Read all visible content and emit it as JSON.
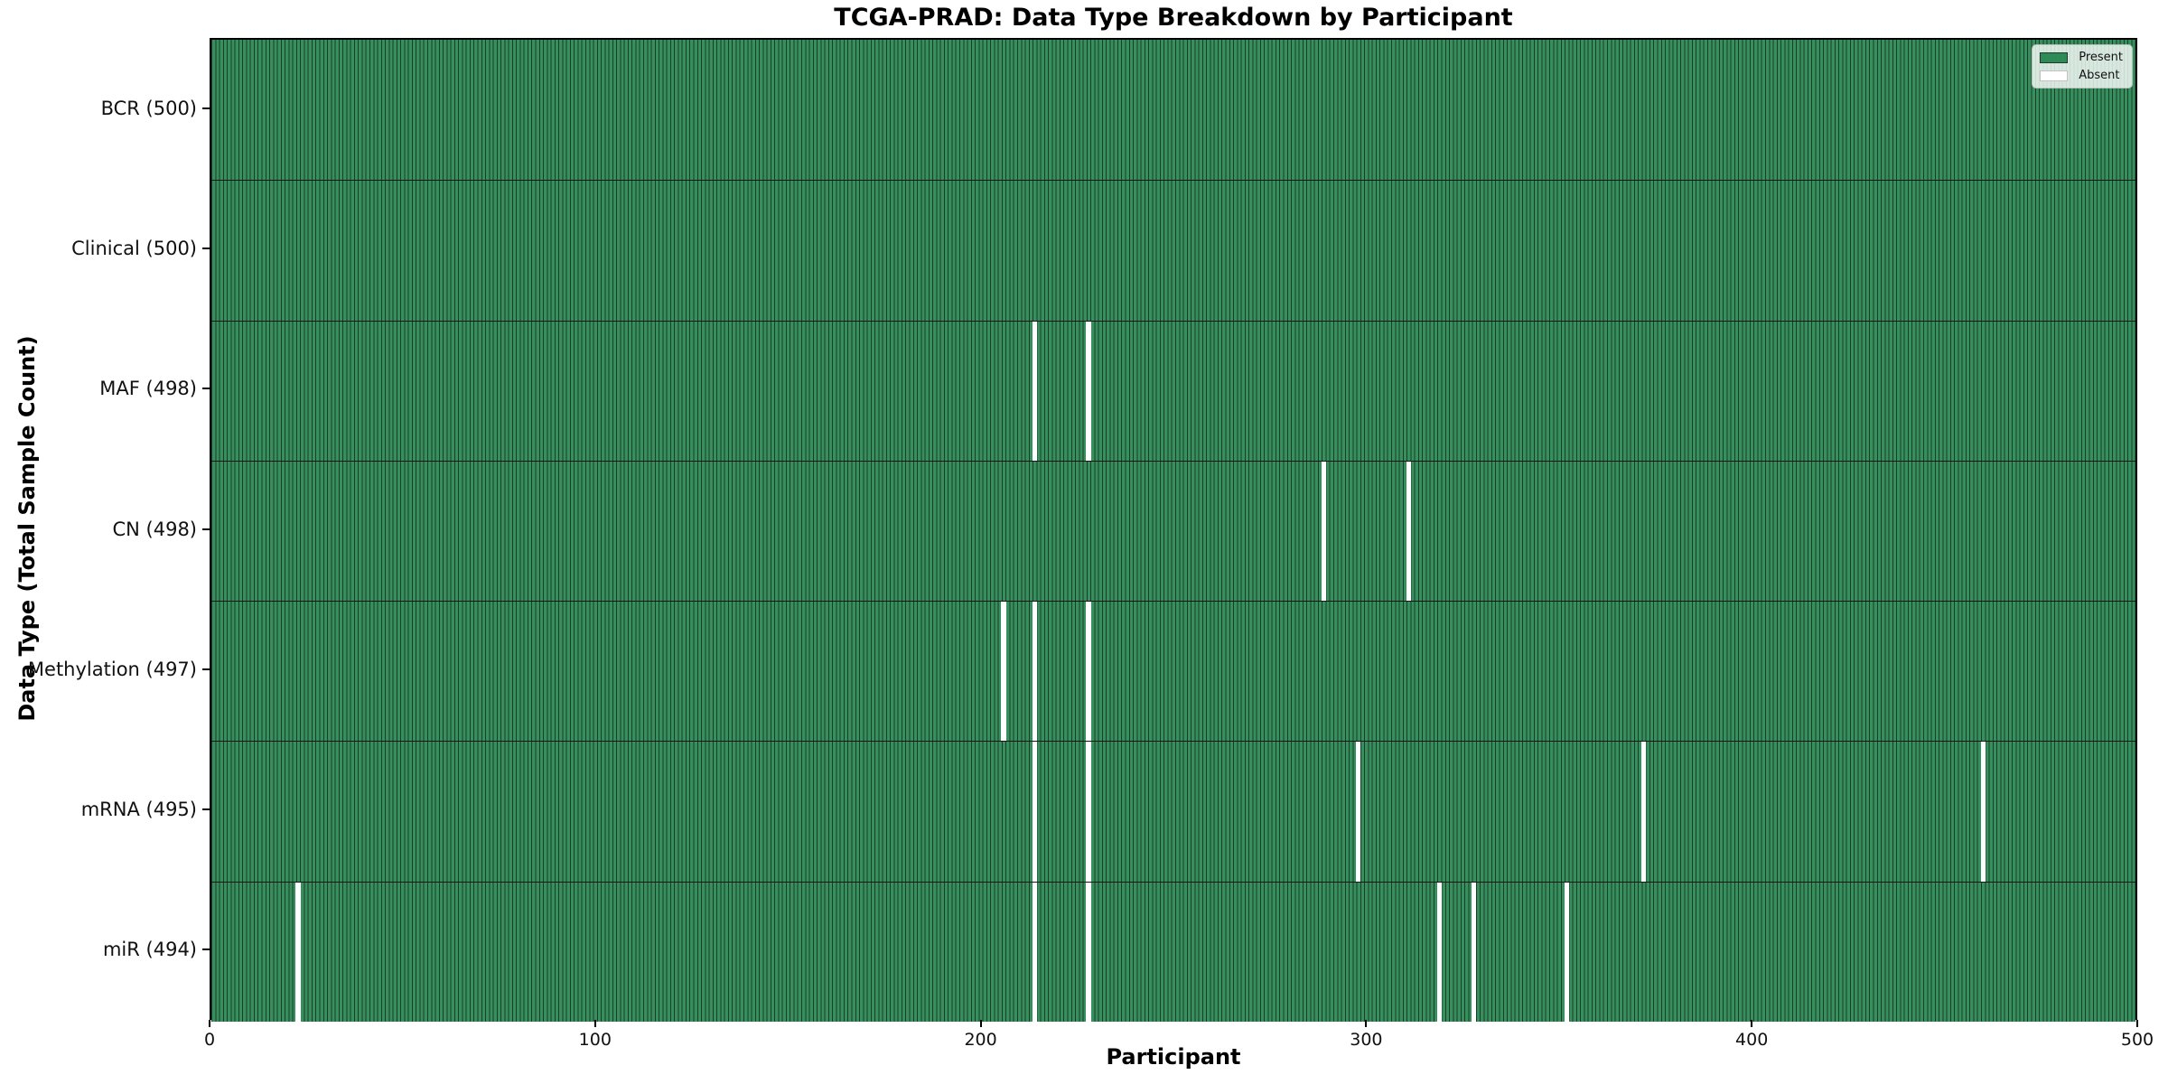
{
  "chart_data": {
    "type": "heatmap",
    "title": "TCGA-PRAD: Data Type Breakdown by Participant",
    "xlabel": "Participant",
    "ylabel": "Data Type (Total Sample Count)",
    "x_range": [
      0,
      500
    ],
    "x_ticks": [
      0,
      100,
      200,
      300,
      400,
      500
    ],
    "n_participants": 500,
    "grid": false,
    "legend": {
      "position": "upper right",
      "entries": [
        {
          "label": "Present",
          "color": "#2e8b57"
        },
        {
          "label": "Absent",
          "color": "#ffffff"
        }
      ]
    },
    "colors": {
      "present_fill": "#35905e",
      "bar_edge": "#1e3b2a",
      "absent": "#ffffff",
      "row_separator": "#161616"
    },
    "rows": [
      {
        "label": "BCR (500)",
        "data_type": "BCR",
        "total": 500,
        "absent_participants": []
      },
      {
        "label": "Clinical (500)",
        "data_type": "Clinical",
        "total": 500,
        "absent_participants": []
      },
      {
        "label": "MAF (498)",
        "data_type": "MAF",
        "total": 498,
        "absent_participants": [
          213,
          227
        ]
      },
      {
        "label": "CN (498)",
        "data_type": "CN",
        "total": 498,
        "absent_participants": [
          288,
          310
        ]
      },
      {
        "label": "Methylation (497)",
        "data_type": "Methylation",
        "total": 497,
        "absent_participants": [
          205,
          213,
          227
        ]
      },
      {
        "label": "mRNA (495)",
        "data_type": "mRNA",
        "total": 495,
        "absent_participants": [
          213,
          227,
          297,
          371,
          459
        ]
      },
      {
        "label": "miR (494)",
        "data_type": "miR",
        "total": 494,
        "absent_participants": [
          22,
          213,
          227,
          318,
          327,
          351
        ]
      }
    ]
  }
}
